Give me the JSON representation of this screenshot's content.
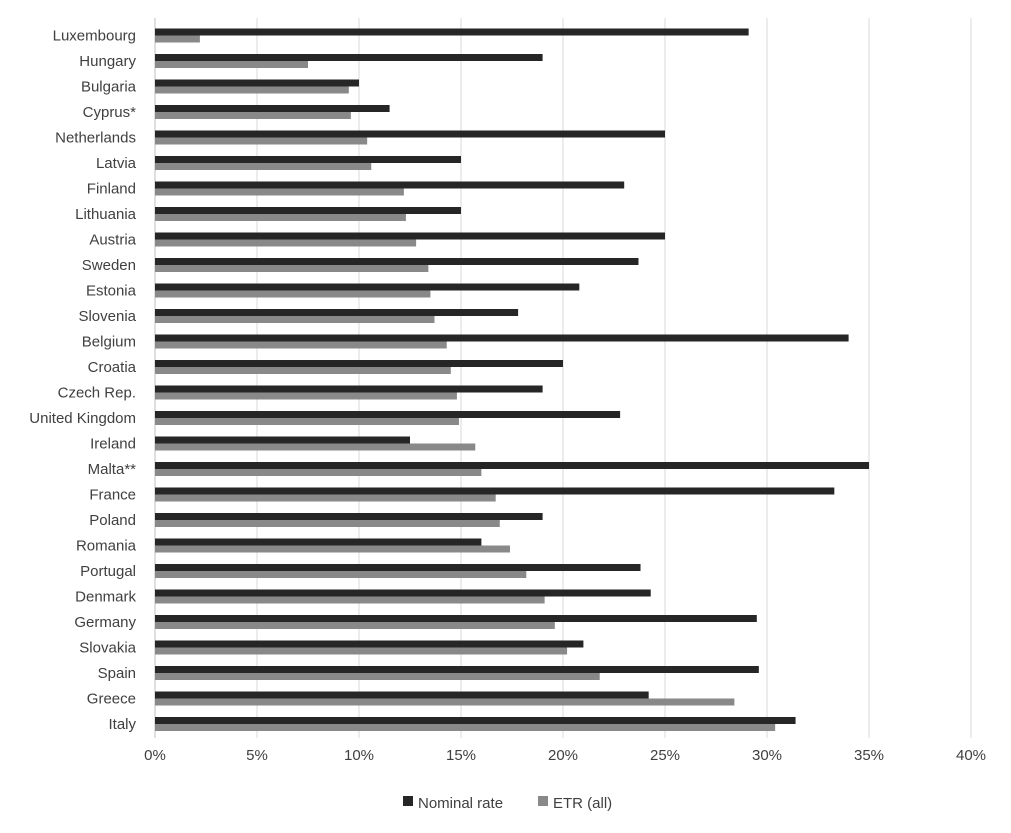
{
  "chart_data": {
    "type": "bar",
    "orientation": "horizontal",
    "categories": [
      "Luxembourg",
      "Hungary",
      "Bulgaria",
      "Cyprus*",
      "Netherlands",
      "Latvia",
      "Finland",
      "Lithuania",
      "Austria",
      "Sweden",
      "Estonia",
      "Slovenia",
      "Belgium",
      "Croatia",
      "Czech Rep.",
      "United Kingdom",
      "Ireland",
      "Malta**",
      "France",
      "Poland",
      "Romania",
      "Portugal",
      "Denmark",
      "Germany",
      "Slovakia",
      "Spain",
      "Greece",
      "Italy"
    ],
    "series": [
      {
        "name": "Nominal rate",
        "color": "#262626",
        "values": [
          29.1,
          19.0,
          10.0,
          11.5,
          25.0,
          15.0,
          23.0,
          15.0,
          25.0,
          23.7,
          20.8,
          17.8,
          34.0,
          20.0,
          19.0,
          22.8,
          12.5,
          35.0,
          33.3,
          19.0,
          16.0,
          23.8,
          24.3,
          29.5,
          21.0,
          29.6,
          24.2,
          31.4
        ]
      },
      {
        "name": "ETR (all)",
        "color": "#898989",
        "values": [
          2.2,
          7.5,
          9.5,
          9.6,
          10.4,
          10.6,
          12.2,
          12.3,
          12.8,
          13.4,
          13.5,
          13.7,
          14.3,
          14.5,
          14.8,
          14.9,
          15.7,
          16.0,
          16.7,
          16.9,
          17.4,
          18.2,
          19.1,
          19.6,
          20.2,
          21.8,
          28.4,
          30.4
        ]
      }
    ],
    "xlim": [
      0,
      40
    ],
    "xticks": [
      0,
      5,
      10,
      15,
      20,
      25,
      30,
      35,
      40
    ],
    "tick_suffix": "%",
    "grid": "vertical",
    "legend_position": "bottom"
  },
  "legend": {
    "nominal_label": "Nominal rate",
    "etr_label": "ETR (all)"
  }
}
